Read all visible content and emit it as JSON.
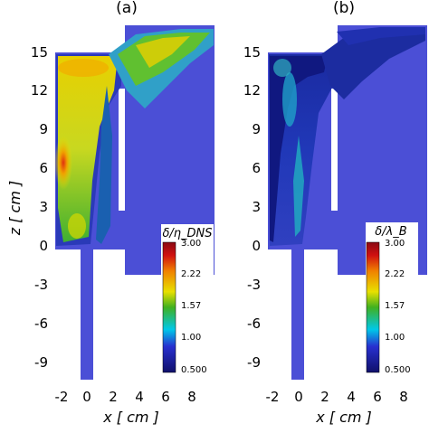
{
  "figure": {
    "panels": [
      {
        "label": "(a)",
        "colorbar": {
          "title": "δ/η_DNS",
          "ticks": [
            "3.00",
            "2.22",
            "1.57",
            "1.00",
            "0.500"
          ]
        }
      },
      {
        "label": "(b)",
        "colorbar": {
          "title": "δ/λ_B",
          "ticks": [
            "3.00",
            "2.22",
            "1.57",
            "1.00",
            "0.500"
          ]
        }
      }
    ],
    "y_axis": {
      "label": "z [ cm ]",
      "ticks": [
        "15",
        "12",
        "9",
        "6",
        "3",
        "0",
        "-3",
        "-6",
        "-9"
      ]
    },
    "x_axis": {
      "label": "x [ cm ]",
      "ticks": [
        "-2",
        "0",
        "2",
        "4",
        "6",
        "8"
      ]
    },
    "colors": {
      "background_field": "#4b4fd6",
      "low": "#0a0a6e",
      "mid": "#00c8e8",
      "green": "#52b820",
      "yellow": "#f0e400",
      "orange": "#f08000",
      "high": "#c01010"
    }
  }
}
